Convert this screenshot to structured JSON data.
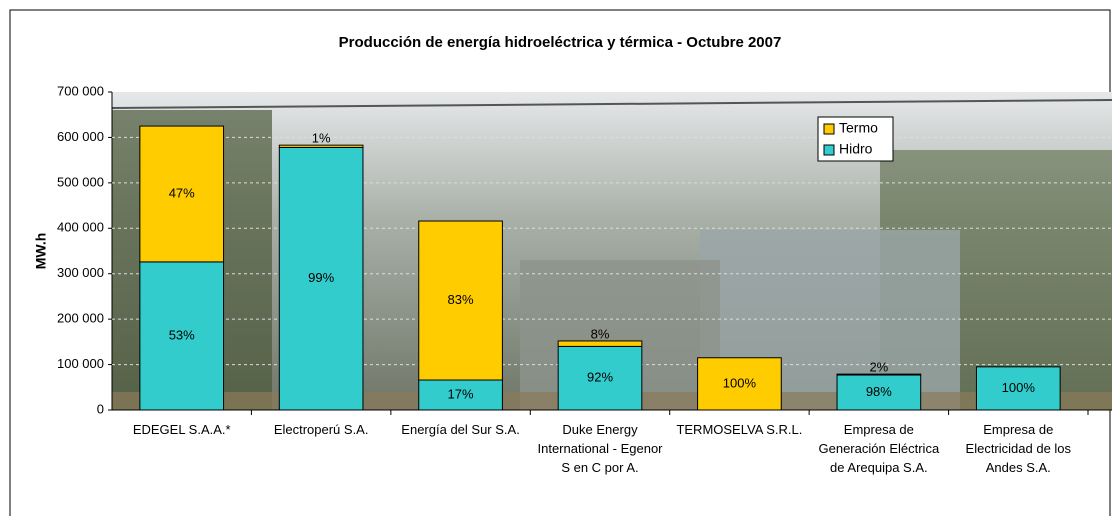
{
  "chart_data": {
    "type": "stacked-bar",
    "title": "Producción de energía hidroeléctrica  y térmica - Octubre 2007",
    "y_label": "MW.h",
    "categories": [
      "EDEGEL S.A.A.*",
      "Electroperú S.A.",
      "Energía del Sur S.A.",
      "Duke Energy International - Egenor S en C por A.",
      "TERMOSELVA S.R.L.",
      "Empresa de Generación Eléctrica de Arequipa S.A.",
      "Empresa de Electricidad de los Andes S.A."
    ],
    "series": [
      {
        "name": "Hidro",
        "color": "#33cccc",
        "values": [
          326000,
          578000,
          66000,
          140000,
          0,
          77000,
          95000
        ],
        "labels": [
          "53%",
          "99%",
          "17%",
          "92%",
          null,
          "98%",
          "100%"
        ]
      },
      {
        "name": "Termo",
        "color": "#ffcc00",
        "values": [
          299000,
          5000,
          350000,
          12000,
          115000,
          2000,
          0
        ],
        "labels": [
          "47%",
          "1%",
          "83%",
          "8%",
          "100%",
          "2%",
          null
        ]
      }
    ],
    "ylim": [
      0,
      700000
    ],
    "yticks": [
      0,
      {
        "value": 100000,
        "label": "100 000"
      },
      {
        "value": 200000,
        "label": "200 000"
      },
      {
        "value": 300000,
        "label": "300 000"
      },
      {
        "value": 400000,
        "label": "400 000"
      },
      {
        "value": 500000,
        "label": "500 000"
      },
      {
        "value": 600000,
        "label": "600 000"
      },
      {
        "value": 700000,
        "label": "700 000"
      }
    ],
    "grid": true,
    "legend": "top-right",
    "legend_order": [
      1,
      0
    ]
  }
}
